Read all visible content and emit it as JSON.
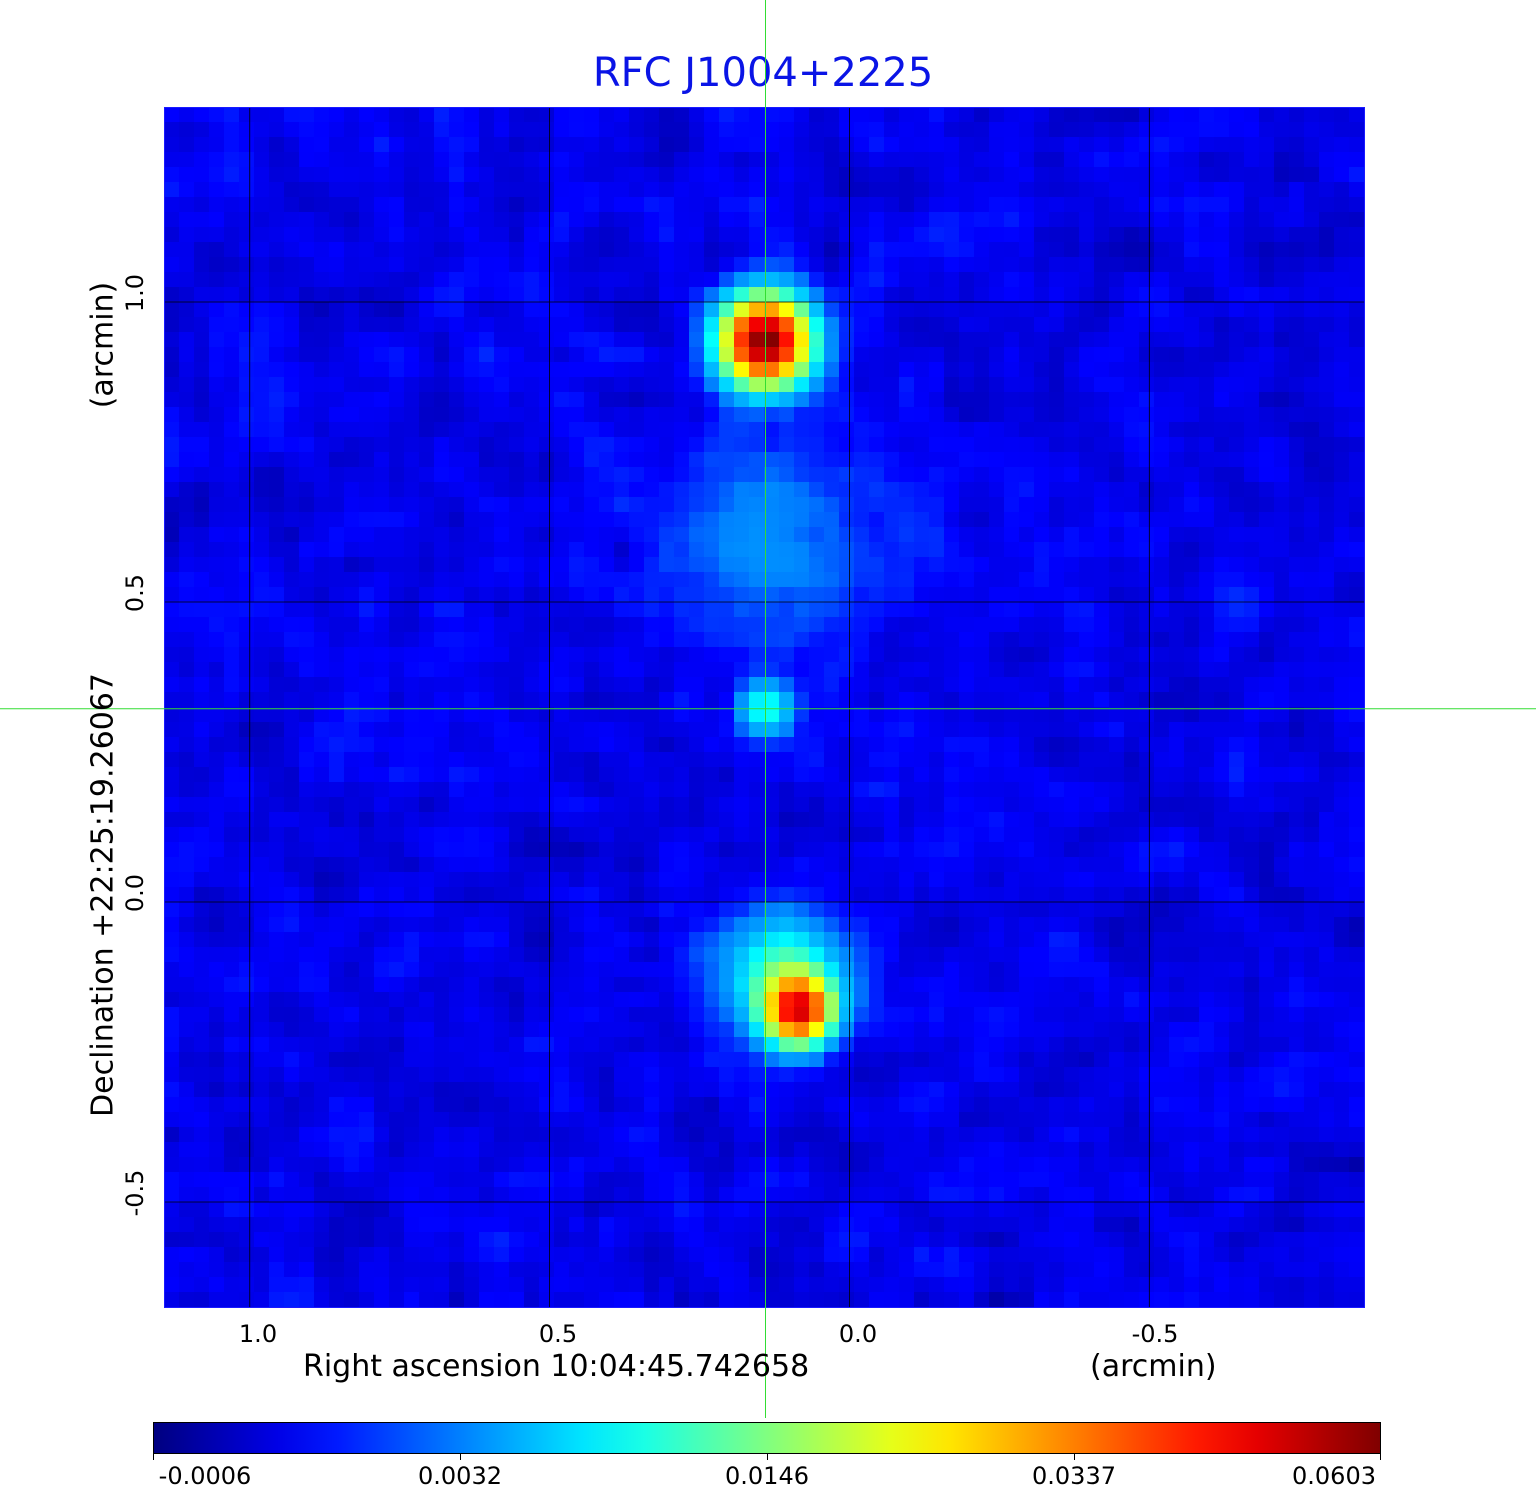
{
  "chart_data": {
    "type": "heatmap",
    "title": "RFC J1004+2225",
    "xlabel": "Right ascension  10:04:45.742658",
    "xunit": "(arcmin)",
    "ylabel": "Declination  +22:25:19.26067",
    "yunit": "(arcmin)",
    "xlim": [
      1.143,
      -0.858
    ],
    "ylim": [
      -0.675,
      1.325
    ],
    "xticks": [
      1.0,
      0.5,
      0.0,
      -0.5
    ],
    "xtick_labels": [
      "1.0",
      "0.5",
      "0.0",
      "-0.5"
    ],
    "yticks": [
      1.0,
      0.5,
      0.0,
      -0.5
    ],
    "ytick_labels": [
      "1.0",
      "0.5",
      "0.0",
      "-0.5"
    ],
    "grid": true,
    "colormap": "jet",
    "colorbar": {
      "placement": "bottom",
      "ticks": [
        -0.0006,
        0.0032,
        0.0146,
        0.0337,
        0.0603
      ],
      "tick_labels": [
        "-0.0006",
        "0.0032",
        "0.0146",
        "0.0337",
        "0.0603"
      ]
    },
    "crosshair": {
      "x": 0.14,
      "y": 0.322,
      "color": "#33dd33"
    },
    "background_level": 0.001,
    "components": [
      {
        "name": "north",
        "x": 0.14,
        "y": 0.935,
        "peak": 0.0603,
        "sigma": 0.045
      },
      {
        "name": "core",
        "x": 0.14,
        "y": 0.322,
        "peak": 0.009,
        "sigma": 0.03
      },
      {
        "name": "south",
        "x": 0.085,
        "y": -0.18,
        "peak": 0.046,
        "sigma": 0.035
      },
      {
        "name": "south-ext",
        "x": 0.11,
        "y": -0.12,
        "peak": 0.012,
        "sigma": 0.06
      },
      {
        "name": "jet",
        "x": 0.13,
        "y": 0.6,
        "peak": 0.0025,
        "sigma": 0.12
      }
    ]
  }
}
